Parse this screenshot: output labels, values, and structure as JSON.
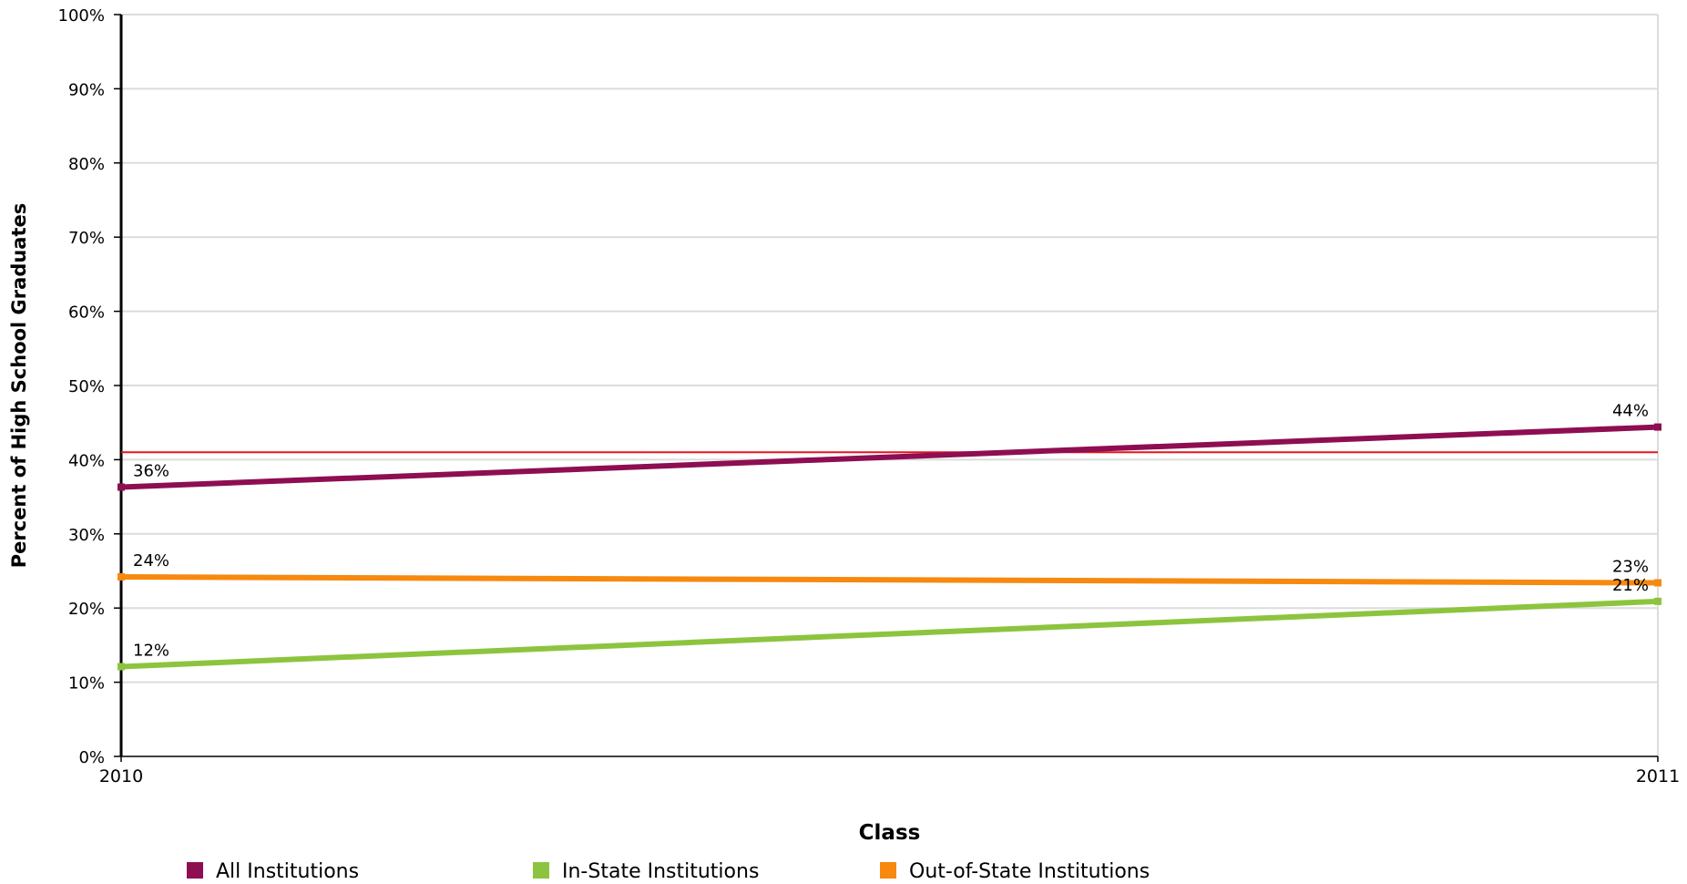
{
  "chart_data": {
    "type": "line",
    "title": "",
    "xlabel": "Class",
    "ylabel": "Percent of High School Graduates",
    "x": [
      "2010",
      "2011"
    ],
    "ylim": [
      0,
      100
    ],
    "yticks": [
      "0%",
      "10%",
      "20%",
      "30%",
      "40%",
      "50%",
      "60%",
      "70%",
      "80%",
      "90%",
      "100%"
    ],
    "grid": true,
    "legend_position": "bottom",
    "reference_line": {
      "value": 41,
      "color": "#e8141e"
    },
    "series": [
      {
        "name": "All Institutions",
        "color": "#8e0e52",
        "values": [
          36.3,
          44.4
        ],
        "labels": [
          "36%",
          "44%"
        ]
      },
      {
        "name": "In-State Institutions",
        "color": "#8dc43f",
        "values": [
          12.1,
          20.9
        ],
        "labels": [
          "12%",
          "21%"
        ]
      },
      {
        "name": "Out-of-State Institutions",
        "color": "#f7890f",
        "values": [
          24.2,
          23.4
        ],
        "labels": [
          "24%",
          "23%"
        ]
      }
    ]
  }
}
